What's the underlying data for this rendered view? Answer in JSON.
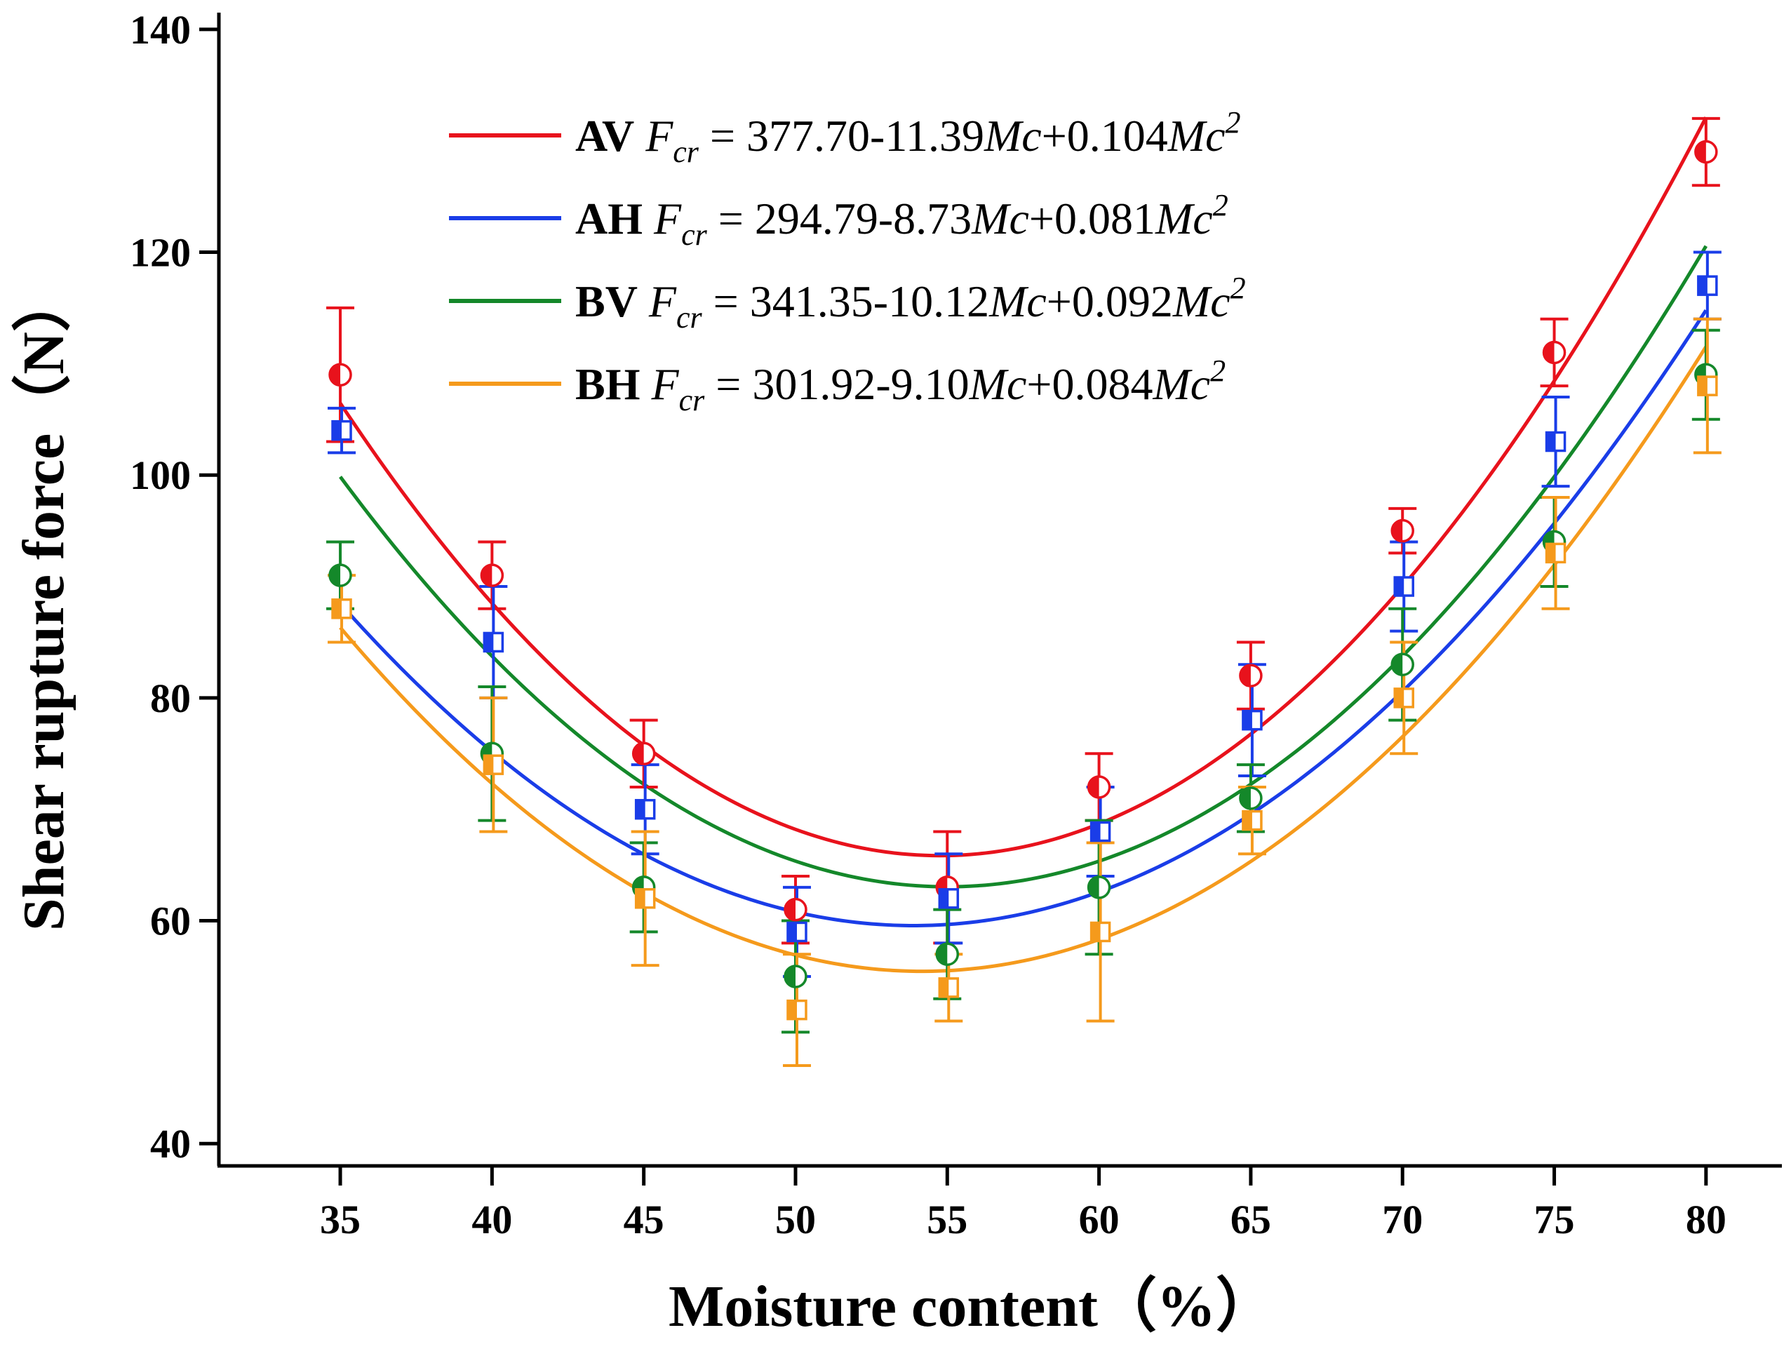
{
  "chart_data": {
    "type": "scatter",
    "title": "",
    "xlabel": "Moisture content（%）",
    "ylabel": "Shear rupture force（N）",
    "xlim": [
      31,
      82.5
    ],
    "ylim": [
      38,
      141.5
    ],
    "xticks": [
      35,
      40,
      45,
      50,
      55,
      60,
      65,
      70,
      75,
      80
    ],
    "yticks": [
      40,
      60,
      80,
      100,
      120,
      140
    ],
    "x": [
      35,
      40,
      45,
      50,
      55,
      60,
      65,
      70,
      75,
      80
    ],
    "legend_position": "top-center",
    "series": [
      {
        "name": "AV",
        "color": "#e8121c",
        "marker": "circle",
        "values": [
          109,
          91,
          75,
          61,
          63,
          72,
          82,
          95,
          111,
          129
        ],
        "error": [
          6,
          3,
          3,
          3,
          5,
          3,
          3,
          2,
          3,
          3
        ],
        "fit": {
          "a": 377.7,
          "b": -11.39,
          "c": 0.104
        },
        "legend": {
          "label": "AV",
          "F": "F",
          "sub": "cr",
          "eq_a": " = 377.70-11.39",
          "Mc": "Mc",
          "eq_b": "+0.104",
          "sup": "2"
        }
      },
      {
        "name": "AH",
        "color": "#1a3de8",
        "marker": "square",
        "values": [
          104,
          85,
          70,
          59,
          62,
          68,
          78,
          90,
          103,
          117
        ],
        "error": [
          2,
          5,
          4,
          4,
          4,
          4,
          5,
          4,
          4,
          3
        ],
        "fit": {
          "a": 294.79,
          "b": -8.73,
          "c": 0.081
        },
        "legend": {
          "label": "AH",
          "F": "F",
          "sub": "cr",
          "eq_a": " = 294.79-8.73",
          "Mc": "Mc",
          "eq_b": "+0.081",
          "sup": "2"
        }
      },
      {
        "name": "BV",
        "color": "#14882a",
        "marker": "circle",
        "values": [
          91,
          75,
          63,
          55,
          57,
          63,
          71,
          83,
          94,
          109
        ],
        "error": [
          3,
          6,
          4,
          5,
          4,
          6,
          3,
          5,
          4,
          4
        ],
        "fit": {
          "a": 341.35,
          "b": -10.12,
          "c": 0.092
        },
        "legend": {
          "label": "BV",
          "F": "F",
          "sub": "cr",
          "eq_a": " = 341.35-10.12",
          "Mc": "Mc",
          "eq_b": "+0.092",
          "sup": "2"
        }
      },
      {
        "name": "BH",
        "color": "#f59a1c",
        "marker": "square",
        "values": [
          88,
          74,
          62,
          52,
          54,
          59,
          69,
          80,
          93,
          108
        ],
        "error": [
          3,
          6,
          6,
          5,
          3,
          8,
          3,
          5,
          5,
          6
        ],
        "fit": {
          "a": 301.92,
          "b": -9.1,
          "c": 0.084
        },
        "legend": {
          "label": "BH",
          "F": "F",
          "sub": "cr",
          "eq_a": " = 301.92-9.10",
          "Mc": "Mc",
          "eq_b": "+0.084",
          "sup": "2"
        }
      }
    ]
  }
}
